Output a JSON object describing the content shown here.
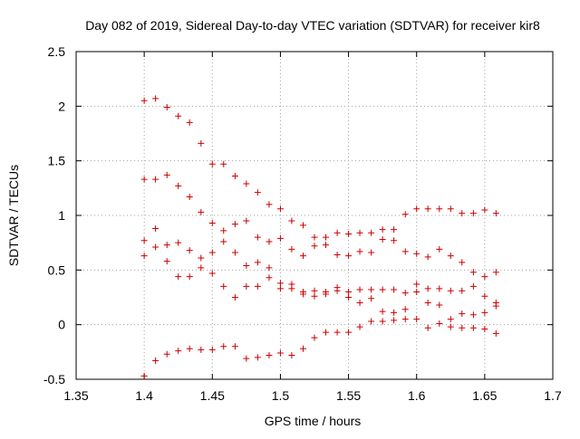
{
  "chart_data": {
    "type": "scatter",
    "title": "Day 082 of 2019, Sidereal Day-to-day VTEC variation (SDTVAR) for receiver kir8",
    "xlabel": "GPS time / hours",
    "ylabel": "SDTVAR / TECUs",
    "xlim": [
      1.35,
      1.7
    ],
    "ylim": [
      -0.5,
      2.5
    ],
    "xticks": [
      1.35,
      1.4,
      1.45,
      1.5,
      1.55,
      1.6,
      1.65,
      1.7
    ],
    "xtick_labels": [
      "1.35",
      "1.4",
      "1.45",
      "1.5",
      "1.55",
      "1.6",
      "1.65",
      "1.7"
    ],
    "yticks": [
      -0.5,
      0,
      0.5,
      1,
      1.5,
      2,
      2.5
    ],
    "ytick_labels": [
      "-0.5",
      "0",
      "0.5",
      "1",
      "1.5",
      "2",
      "2.5"
    ],
    "grid": true,
    "marker": "+",
    "marker_color": "#cc0000",
    "points": [
      [
        1.4,
        2.05
      ],
      [
        1.4083,
        2.07
      ],
      [
        1.4167,
        1.99
      ],
      [
        1.425,
        1.91
      ],
      [
        1.4333,
        1.85
      ],
      [
        1.4417,
        1.66
      ],
      [
        1.45,
        1.47
      ],
      [
        1.4583,
        1.47
      ],
      [
        1.4667,
        1.36
      ],
      [
        1.475,
        1.29
      ],
      [
        1.4833,
        1.21
      ],
      [
        1.4917,
        1.1
      ],
      [
        1.5,
        1.06
      ],
      [
        1.5083,
        0.95
      ],
      [
        1.5167,
        0.91
      ],
      [
        1.525,
        0.8
      ],
      [
        1.5333,
        0.8
      ],
      [
        1.5417,
        0.84
      ],
      [
        1.55,
        0.83
      ],
      [
        1.5583,
        0.84
      ],
      [
        1.5667,
        0.84
      ],
      [
        1.575,
        0.87
      ],
      [
        1.5833,
        0.87
      ],
      [
        1.5917,
        1.01
      ],
      [
        1.6,
        1.06
      ],
      [
        1.6083,
        1.06
      ],
      [
        1.6167,
        1.06
      ],
      [
        1.625,
        1.06
      ],
      [
        1.6333,
        1.02
      ],
      [
        1.6417,
        1.02
      ],
      [
        1.65,
        1.05
      ],
      [
        1.6583,
        1.02
      ],
      [
        1.4,
        1.33
      ],
      [
        1.4083,
        1.33
      ],
      [
        1.4167,
        1.37
      ],
      [
        1.425,
        1.27
      ],
      [
        1.4333,
        1.17
      ],
      [
        1.4417,
        1.03
      ],
      [
        1.45,
        0.93
      ],
      [
        1.4583,
        0.86
      ],
      [
        1.4667,
        0.92
      ],
      [
        1.475,
        0.95
      ],
      [
        1.4833,
        0.8
      ],
      [
        1.4917,
        0.76
      ],
      [
        1.5,
        0.79
      ],
      [
        1.5083,
        0.69
      ],
      [
        1.5167,
        0.63
      ],
      [
        1.525,
        0.72
      ],
      [
        1.5333,
        0.73
      ],
      [
        1.5417,
        0.64
      ],
      [
        1.55,
        0.63
      ],
      [
        1.5583,
        0.67
      ],
      [
        1.5667,
        0.66
      ],
      [
        1.575,
        0.78
      ],
      [
        1.5833,
        0.77
      ],
      [
        1.5917,
        0.67
      ],
      [
        1.6,
        0.65
      ],
      [
        1.6083,
        0.62
      ],
      [
        1.6167,
        0.69
      ],
      [
        1.625,
        0.63
      ],
      [
        1.6333,
        0.57
      ],
      [
        1.6417,
        0.48
      ],
      [
        1.65,
        0.44
      ],
      [
        1.6583,
        0.48
      ],
      [
        1.4,
        0.77
      ],
      [
        1.4083,
        0.88
      ],
      [
        1.4167,
        0.73
      ],
      [
        1.425,
        0.75
      ],
      [
        1.4333,
        0.68
      ],
      [
        1.4417,
        0.61
      ],
      [
        1.45,
        0.66
      ],
      [
        1.4583,
        0.76
      ],
      [
        1.4667,
        0.66
      ],
      [
        1.475,
        0.54
      ],
      [
        1.4833,
        0.57
      ],
      [
        1.4917,
        0.52
      ],
      [
        1.5,
        0.38
      ],
      [
        1.5083,
        0.37
      ],
      [
        1.5167,
        0.3
      ],
      [
        1.525,
        0.31
      ],
      [
        1.5333,
        0.3
      ],
      [
        1.5417,
        0.34
      ],
      [
        1.55,
        0.3
      ],
      [
        1.5583,
        0.32
      ],
      [
        1.5667,
        0.32
      ],
      [
        1.575,
        0.32
      ],
      [
        1.5833,
        0.32
      ],
      [
        1.5917,
        0.29
      ],
      [
        1.6,
        0.37
      ],
      [
        1.6083,
        0.33
      ],
      [
        1.6167,
        0.33
      ],
      [
        1.625,
        0.31
      ],
      [
        1.6333,
        0.31
      ],
      [
        1.6417,
        0.35
      ],
      [
        1.65,
        0.26
      ],
      [
        1.6583,
        0.2
      ],
      [
        1.4,
        0.63
      ],
      [
        1.4083,
        0.71
      ],
      [
        1.4167,
        0.58
      ],
      [
        1.425,
        0.44
      ],
      [
        1.4333,
        0.44
      ],
      [
        1.4417,
        0.52
      ],
      [
        1.45,
        0.47
      ],
      [
        1.4583,
        0.35
      ],
      [
        1.4667,
        0.25
      ],
      [
        1.475,
        0.35
      ],
      [
        1.4833,
        0.35
      ],
      [
        1.4917,
        0.43
      ],
      [
        1.5,
        0.33
      ],
      [
        1.5083,
        0.33
      ],
      [
        1.5167,
        0.28
      ],
      [
        1.525,
        0.26
      ],
      [
        1.5333,
        0.28
      ],
      [
        1.5417,
        0.31
      ],
      [
        1.55,
        0.25
      ],
      [
        1.5583,
        0.2
      ],
      [
        1.5667,
        0.24
      ],
      [
        1.575,
        0.12
      ],
      [
        1.5833,
        0.11
      ],
      [
        1.5917,
        0.14
      ],
      [
        1.6,
        0.3
      ],
      [
        1.6083,
        0.2
      ],
      [
        1.6167,
        0.18
      ],
      [
        1.625,
        0.05
      ],
      [
        1.6333,
        0.1
      ],
      [
        1.6417,
        0.09
      ],
      [
        1.65,
        0.11
      ],
      [
        1.6583,
        0.17
      ],
      [
        1.4,
        -0.47
      ],
      [
        1.4083,
        -0.33
      ],
      [
        1.4167,
        -0.27
      ],
      [
        1.425,
        -0.24
      ],
      [
        1.4333,
        -0.22
      ],
      [
        1.4417,
        -0.23
      ],
      [
        1.45,
        -0.23
      ],
      [
        1.4583,
        -0.2
      ],
      [
        1.4667,
        -0.2
      ],
      [
        1.475,
        -0.31
      ],
      [
        1.4833,
        -0.3
      ],
      [
        1.4917,
        -0.28
      ],
      [
        1.5,
        -0.26
      ],
      [
        1.5083,
        -0.28
      ],
      [
        1.5167,
        -0.22
      ],
      [
        1.525,
        -0.12
      ],
      [
        1.5333,
        -0.07
      ],
      [
        1.5417,
        -0.07
      ],
      [
        1.55,
        -0.07
      ],
      [
        1.5583,
        -0.02
      ],
      [
        1.5667,
        0.03
      ],
      [
        1.575,
        0.03
      ],
      [
        1.5833,
        0.04
      ],
      [
        1.5917,
        0.05
      ],
      [
        1.6,
        0.05
      ],
      [
        1.6083,
        -0.03
      ],
      [
        1.6167,
        0.01
      ],
      [
        1.625,
        -0.02
      ],
      [
        1.6333,
        -0.03
      ],
      [
        1.6417,
        -0.03
      ],
      [
        1.65,
        -0.04
      ],
      [
        1.6583,
        -0.08
      ]
    ]
  }
}
